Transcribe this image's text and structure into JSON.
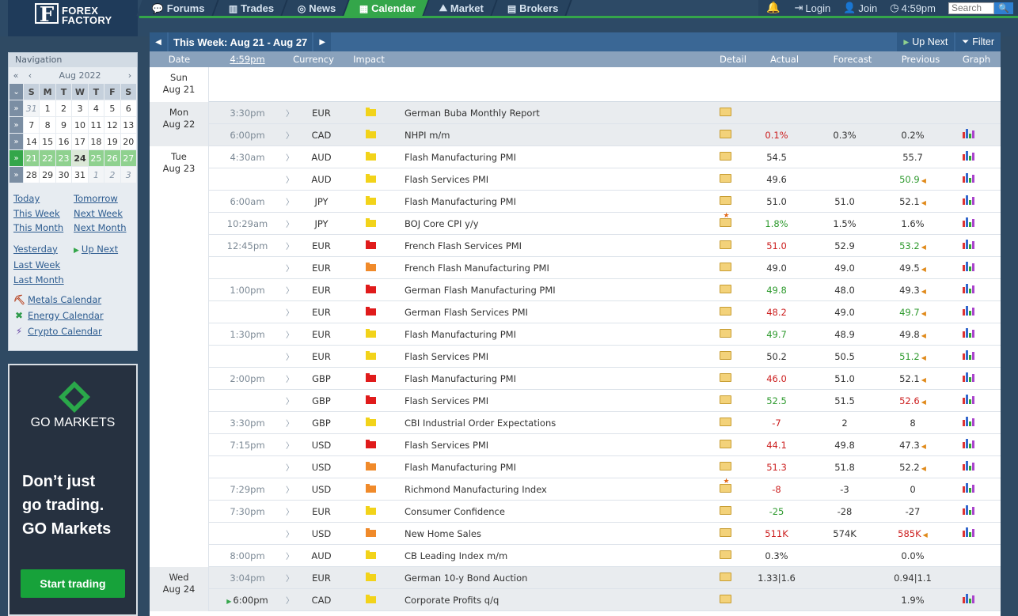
{
  "brand": {
    "mark": "F",
    "line1": "FOREX",
    "line2": "FACTORY"
  },
  "nav": {
    "tabs": [
      {
        "label": "Forums",
        "icon": "💬"
      },
      {
        "label": "Trades",
        "icon": "▥"
      },
      {
        "label": "News",
        "icon": "◎"
      },
      {
        "label": "Calendar",
        "icon": "▦"
      },
      {
        "label": "Market",
        "icon": "⛰"
      },
      {
        "label": "Brokers",
        "icon": "▤"
      }
    ],
    "active": "Calendar",
    "login": "Login",
    "join": "Join",
    "time": "4:59pm",
    "search_placeholder": "Search"
  },
  "sidebar": {
    "title": "Navigation",
    "month": "Aug 2022",
    "dow": [
      "S",
      "M",
      "T",
      "W",
      "T",
      "F",
      "S"
    ],
    "weeks": [
      [
        "31",
        "1",
        "2",
        "3",
        "4",
        "5",
        "6"
      ],
      [
        "7",
        "8",
        "9",
        "10",
        "11",
        "12",
        "13"
      ],
      [
        "14",
        "15",
        "16",
        "17",
        "18",
        "19",
        "20"
      ],
      [
        "21",
        "22",
        "23",
        "24",
        "25",
        "26",
        "27"
      ],
      [
        "28",
        "29",
        "30",
        "31",
        "1",
        "2",
        "3"
      ]
    ],
    "links": {
      "today": "Today",
      "tomorrow": "Tomorrow",
      "this_week": "This Week",
      "next_week": "Next Week",
      "this_month": "This Month",
      "next_month": "Next Month",
      "yesterday": "Yesterday",
      "up_next": "Up Next",
      "last_week": "Last Week",
      "last_month": "Last Month"
    },
    "extra": [
      "Metals Calendar",
      "Energy Calendar",
      "Crypto Calendar"
    ]
  },
  "ad": {
    "brand": "GO MARKETS",
    "line1": "Don’t just",
    "line2": "go trading.",
    "line3": "GO Markets",
    "cta": "Start trading"
  },
  "calendar": {
    "week_title": "This Week: Aug 21 - Aug 27",
    "up_next": "Up Next",
    "filter": "Filter",
    "headers": {
      "date": "Date",
      "time": "4:59pm",
      "currency": "Currency",
      "impact": "Impact",
      "detail": "Detail",
      "actual": "Actual",
      "forecast": "Forecast",
      "previous": "Previous",
      "graph": "Graph"
    },
    "days": [
      {
        "name": "Sun",
        "date": "Aug 21"
      },
      {
        "name": "Mon",
        "date": "Aug 22"
      },
      {
        "name": "Tue",
        "date": "Aug 23"
      },
      {
        "name": "Wed",
        "date": "Aug 24"
      }
    ],
    "events": [
      {
        "time": "3:30pm",
        "cur": "EUR",
        "impact": "yellow",
        "event": "German Buba Monthly Report",
        "star": false,
        "actual": "",
        "forecast": "",
        "previous": "",
        "actual_dir": "",
        "prev_dir": "",
        "graph": false
      },
      {
        "time": "6:00pm",
        "cur": "CAD",
        "impact": "yellow",
        "event": "NHPI m/m",
        "star": false,
        "actual": "0.1%",
        "forecast": "0.3%",
        "previous": "0.2%",
        "actual_dir": "down",
        "prev_dir": "",
        "graph": true
      },
      {
        "time": "4:30am",
        "cur": "AUD",
        "impact": "yellow",
        "event": "Flash Manufacturing PMI",
        "star": false,
        "actual": "54.5",
        "forecast": "",
        "previous": "55.7",
        "actual_dir": "",
        "prev_dir": "",
        "graph": true
      },
      {
        "time": "",
        "cur": "AUD",
        "impact": "yellow",
        "event": "Flash Services PMI",
        "star": false,
        "actual": "49.6",
        "forecast": "",
        "previous": "50.9",
        "actual_dir": "",
        "prev_dir": "up",
        "graph": true
      },
      {
        "time": "6:00am",
        "cur": "JPY",
        "impact": "yellow",
        "event": "Flash Manufacturing PMI",
        "star": false,
        "actual": "51.0",
        "forecast": "51.0",
        "previous": "52.1",
        "actual_dir": "",
        "prev_dir": "rev",
        "graph": true
      },
      {
        "time": "10:29am",
        "cur": "JPY",
        "impact": "yellow",
        "event": "BOJ Core CPI y/y",
        "star": true,
        "actual": "1.8%",
        "forecast": "1.5%",
        "previous": "1.6%",
        "actual_dir": "up",
        "prev_dir": "",
        "graph": true
      },
      {
        "time": "12:45pm",
        "cur": "EUR",
        "impact": "red",
        "event": "French Flash Services PMI",
        "star": false,
        "actual": "51.0",
        "forecast": "52.9",
        "previous": "53.2",
        "actual_dir": "down",
        "prev_dir": "up",
        "graph": true
      },
      {
        "time": "",
        "cur": "EUR",
        "impact": "orange",
        "event": "French Flash Manufacturing PMI",
        "star": false,
        "actual": "49.0",
        "forecast": "49.0",
        "previous": "49.5",
        "actual_dir": "",
        "prev_dir": "rev",
        "graph": true
      },
      {
        "time": "1:00pm",
        "cur": "EUR",
        "impact": "red",
        "event": "German Flash Manufacturing PMI",
        "star": false,
        "actual": "49.8",
        "forecast": "48.0",
        "previous": "49.3",
        "actual_dir": "up",
        "prev_dir": "rev",
        "graph": true
      },
      {
        "time": "",
        "cur": "EUR",
        "impact": "red",
        "event": "German Flash Services PMI",
        "star": false,
        "actual": "48.2",
        "forecast": "49.0",
        "previous": "49.7",
        "actual_dir": "down",
        "prev_dir": "up",
        "graph": true
      },
      {
        "time": "1:30pm",
        "cur": "EUR",
        "impact": "yellow",
        "event": "Flash Manufacturing PMI",
        "star": false,
        "actual": "49.7",
        "forecast": "48.9",
        "previous": "49.8",
        "actual_dir": "up",
        "prev_dir": "rev",
        "graph": true
      },
      {
        "time": "",
        "cur": "EUR",
        "impact": "yellow",
        "event": "Flash Services PMI",
        "star": false,
        "actual": "50.2",
        "forecast": "50.5",
        "previous": "51.2",
        "actual_dir": "",
        "prev_dir": "up",
        "graph": true
      },
      {
        "time": "2:00pm",
        "cur": "GBP",
        "impact": "red",
        "event": "Flash Manufacturing PMI",
        "star": false,
        "actual": "46.0",
        "forecast": "51.0",
        "previous": "52.1",
        "actual_dir": "down",
        "prev_dir": "rev",
        "graph": true
      },
      {
        "time": "",
        "cur": "GBP",
        "impact": "red",
        "event": "Flash Services PMI",
        "star": false,
        "actual": "52.5",
        "forecast": "51.5",
        "previous": "52.6",
        "actual_dir": "up",
        "prev_dir": "down",
        "graph": true
      },
      {
        "time": "3:30pm",
        "cur": "GBP",
        "impact": "yellow",
        "event": "CBI Industrial Order Expectations",
        "star": false,
        "actual": "-7",
        "forecast": "2",
        "previous": "8",
        "actual_dir": "down",
        "prev_dir": "",
        "graph": true
      },
      {
        "time": "7:15pm",
        "cur": "USD",
        "impact": "red",
        "event": "Flash Services PMI",
        "star": false,
        "actual": "44.1",
        "forecast": "49.8",
        "previous": "47.3",
        "actual_dir": "down",
        "prev_dir": "rev",
        "graph": true
      },
      {
        "time": "",
        "cur": "USD",
        "impact": "orange",
        "event": "Flash Manufacturing PMI",
        "star": false,
        "actual": "51.3",
        "forecast": "51.8",
        "previous": "52.2",
        "actual_dir": "down",
        "prev_dir": "rev",
        "graph": true
      },
      {
        "time": "7:29pm",
        "cur": "USD",
        "impact": "orange",
        "event": "Richmond Manufacturing Index",
        "star": true,
        "actual": "-8",
        "forecast": "-3",
        "previous": "0",
        "actual_dir": "down",
        "prev_dir": "",
        "graph": true
      },
      {
        "time": "7:30pm",
        "cur": "EUR",
        "impact": "yellow",
        "event": "Consumer Confidence",
        "star": false,
        "actual": "-25",
        "forecast": "-28",
        "previous": "-27",
        "actual_dir": "up",
        "prev_dir": "",
        "graph": true
      },
      {
        "time": "",
        "cur": "USD",
        "impact": "orange",
        "event": "New Home Sales",
        "star": false,
        "actual": "511K",
        "forecast": "574K",
        "previous": "585K",
        "actual_dir": "down",
        "prev_dir": "down",
        "graph": true
      },
      {
        "time": "8:00pm",
        "cur": "AUD",
        "impact": "yellow",
        "event": "CB Leading Index m/m",
        "star": false,
        "actual": "0.3%",
        "forecast": "",
        "previous": "0.0%",
        "actual_dir": "",
        "prev_dir": "",
        "graph": false
      },
      {
        "time": "3:04pm",
        "cur": "EUR",
        "impact": "yellow",
        "event": "German 10-y Bond Auction",
        "star": false,
        "actual": "1.33|1.6",
        "forecast": "",
        "previous": "0.94|1.1",
        "actual_dir": "",
        "prev_dir": "",
        "graph": false
      },
      {
        "time": "6:00pm",
        "cur": "CAD",
        "impact": "yellow",
        "event": "Corporate Profits q/q",
        "star": false,
        "actual": "",
        "forecast": "",
        "previous": "1.9%",
        "actual_dir": "",
        "prev_dir": "",
        "graph": true
      }
    ]
  },
  "colors": {
    "accent": "#34a64a",
    "header": "#3a6795",
    "impact_red": "#e01b1b",
    "impact_orange": "#f08a2a",
    "impact_yellow": "#f2d31a"
  }
}
